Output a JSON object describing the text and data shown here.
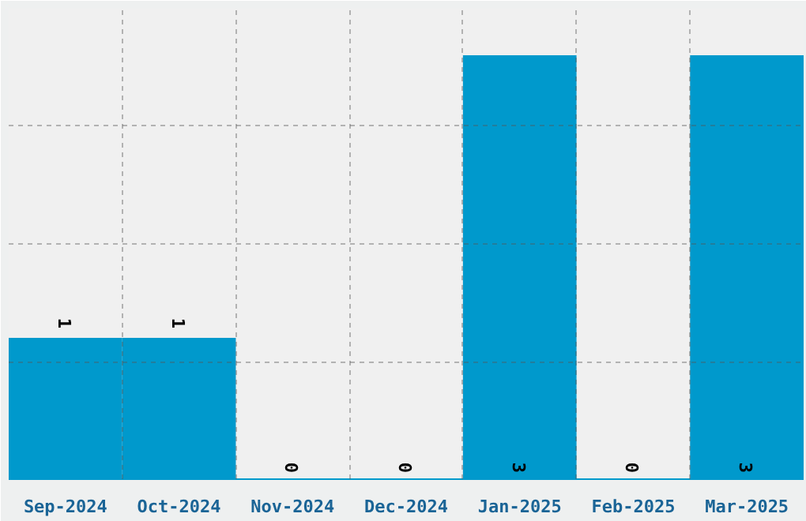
{
  "chart_data": {
    "type": "bar",
    "categories": [
      "Sep-2024",
      "Oct-2024",
      "Nov-2024",
      "Dec-2024",
      "Jan-2025",
      "Feb-2025",
      "Mar-2025"
    ],
    "values": [
      1,
      1,
      0,
      0,
      3,
      0,
      3
    ],
    "color": "#0099cc",
    "data_labels": true,
    "grid": true,
    "tick_labels": "x",
    "ylim": [
      0,
      3.33
    ],
    "yticks": [
      {
        "value": 0.83,
        "label": null
      },
      {
        "value": 1.67,
        "label": null
      },
      {
        "value": 2.5,
        "label": null
      }
    ]
  }
}
